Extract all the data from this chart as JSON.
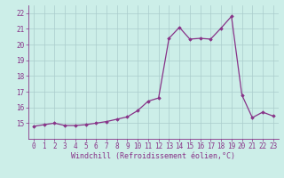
{
  "x": [
    0,
    1,
    2,
    3,
    4,
    5,
    6,
    7,
    8,
    9,
    10,
    11,
    12,
    13,
    14,
    15,
    16,
    17,
    18,
    19,
    20,
    21,
    22,
    23
  ],
  "y": [
    14.8,
    14.9,
    15.0,
    14.85,
    14.85,
    14.9,
    15.0,
    15.1,
    15.25,
    15.4,
    15.8,
    16.4,
    16.6,
    20.4,
    21.1,
    20.35,
    20.4,
    20.35,
    21.05,
    21.8,
    16.8,
    15.35,
    15.7,
    15.45
  ],
  "line_color": "#883388",
  "marker": "D",
  "marker_size": 1.8,
  "bg_color": "#cceee8",
  "grid_color": "#aacccc",
  "xlabel": "Windchill (Refroidissement éolien,°C)",
  "xlabel_color": "#883388",
  "tick_color": "#883388",
  "ylim": [
    14.0,
    22.5
  ],
  "xlim": [
    -0.5,
    23.5
  ],
  "yticks": [
    15,
    16,
    17,
    18,
    19,
    20,
    21,
    22
  ],
  "xticks": [
    0,
    1,
    2,
    3,
    4,
    5,
    6,
    7,
    8,
    9,
    10,
    11,
    12,
    13,
    14,
    15,
    16,
    17,
    18,
    19,
    20,
    21,
    22,
    23
  ],
  "tick_fontsize": 5.5,
  "xlabel_fontsize": 6.0,
  "linewidth": 0.9
}
